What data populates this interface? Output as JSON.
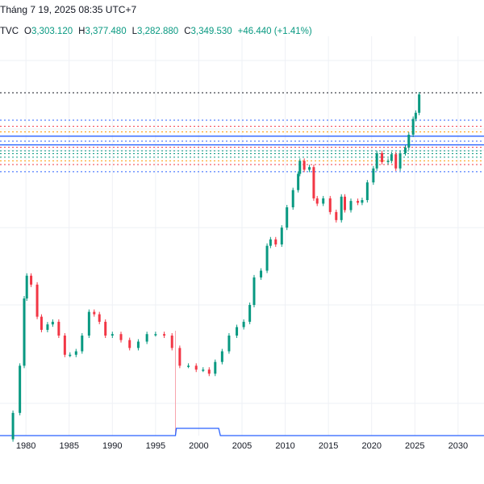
{
  "header": {
    "datetime": "Tháng 7 19, 2025 08:35 UTC+7",
    "source": "TVC",
    "open_label": "O",
    "open": "3,303.120",
    "high_label": "H",
    "high": "3,377.480",
    "low_label": "L",
    "low": "3,282.880",
    "close_label": "C",
    "close": "3,349.530",
    "change": "+46.440 (+1.41%)"
  },
  "colors": {
    "up": "#089981",
    "down": "#f23645",
    "volume_line": "#2962ff",
    "blue_level": "#2962ff",
    "grid": "#f0f3fa"
  },
  "chart_data": {
    "type": "line",
    "x_axis": {
      "range": [
        1977,
        2033
      ],
      "tick_labels": [
        "1980",
        "1985",
        "1990",
        "1995",
        "2000",
        "2005",
        "2010",
        "2015",
        "2020",
        "2025",
        "2030"
      ]
    },
    "y_axis": {
      "scale": "log",
      "range_estimate": [
        180,
        3800
      ]
    },
    "series": [
      {
        "x": [
          1977.5,
          1978.5,
          1979.3,
          1979.8,
          1980.1,
          1980.6,
          1981.3,
          1981.8,
          1982.5,
          1983.1,
          1983.8,
          1984.5,
          1985.1,
          1985.8,
          1986.5,
          1987.3,
          1987.9,
          1988.5,
          1989.2,
          1990.0,
          1991.0,
          1992.0,
          1993.0,
          1994.0,
          1995.0,
          1996.0,
          1996.9,
          1997.8,
          1998.8,
          1999.7,
          2000.5,
          2001.2,
          2001.9,
          2002.7,
          2003.5,
          2004.4,
          2005.2,
          2005.9,
          2006.4,
          2007.2,
          2007.9,
          2008.3,
          2008.9,
          2009.6,
          2010.2,
          2010.9,
          2011.5,
          2011.7,
          2012.2,
          2012.8,
          2013.3,
          2013.7,
          2014.4,
          2015.2,
          2015.9,
          2016.5,
          2016.9,
          2017.6,
          2018.4,
          2018.9,
          2019.5,
          2020.2,
          2020.6,
          2021.2,
          2021.9,
          2022.3,
          2022.8,
          2023.3,
          2023.9,
          2024.3,
          2024.8,
          2025.1,
          2025.5
        ],
        "y": [
          150,
          190,
          290,
          530,
          650,
          600,
          450,
          400,
          420,
          430,
          380,
          320,
          320,
          330,
          380,
          470,
          460,
          430,
          380,
          385,
          365,
          340,
          360,
          385,
          385,
          380,
          340,
          290,
          290,
          280,
          280,
          270,
          300,
          330,
          380,
          410,
          430,
          500,
          640,
          680,
          850,
          900,
          860,
          1000,
          1200,
          1400,
          1620,
          1820,
          1680,
          1720,
          1300,
          1240,
          1300,
          1150,
          1070,
          1320,
          1170,
          1270,
          1250,
          1280,
          1500,
          1700,
          1950,
          1800,
          1820,
          1930,
          1700,
          1950,
          2050,
          2300,
          2650,
          2800,
          3300
        ]
      }
    ],
    "horizontal_levels": [
      {
        "price": 3350,
        "style": "dotted",
        "color": "#131722"
      },
      {
        "price": 2620,
        "style": "dotted",
        "color": "#2962ff"
      },
      {
        "price": 2480,
        "style": "dotted",
        "color": "#f23645"
      },
      {
        "price": 2360,
        "style": "dotted",
        "color": "#ff9800"
      },
      {
        "price": 2270,
        "style": "solid",
        "color": "#2962ff"
      },
      {
        "price": 2170,
        "style": "dotted",
        "color": "#2962ff"
      },
      {
        "price": 2100,
        "style": "solid",
        "color": "#2962ff"
      },
      {
        "price": 2055,
        "style": "dotted",
        "color": "#f23645"
      },
      {
        "price": 1990,
        "style": "dotted",
        "color": "#089981"
      },
      {
        "price": 1940,
        "style": "dotted",
        "color": "#089981"
      },
      {
        "price": 1880,
        "style": "dotted",
        "color": "#089981"
      },
      {
        "price": 1820,
        "style": "dotted",
        "color": "#ff9800"
      },
      {
        "price": 1760,
        "style": "dotted",
        "color": "#f23645"
      },
      {
        "price": 1650,
        "style": "dotted",
        "color": "#2962ff"
      }
    ],
    "volume_step": {
      "x": [
        1977,
        1997.3,
        1997.4,
        2002.3,
        2002.5,
        2033
      ],
      "level": [
        0,
        0,
        1,
        1,
        0,
        0
      ]
    },
    "spike": {
      "x": 1997.3
    },
    "grid": true,
    "legend": "none"
  }
}
